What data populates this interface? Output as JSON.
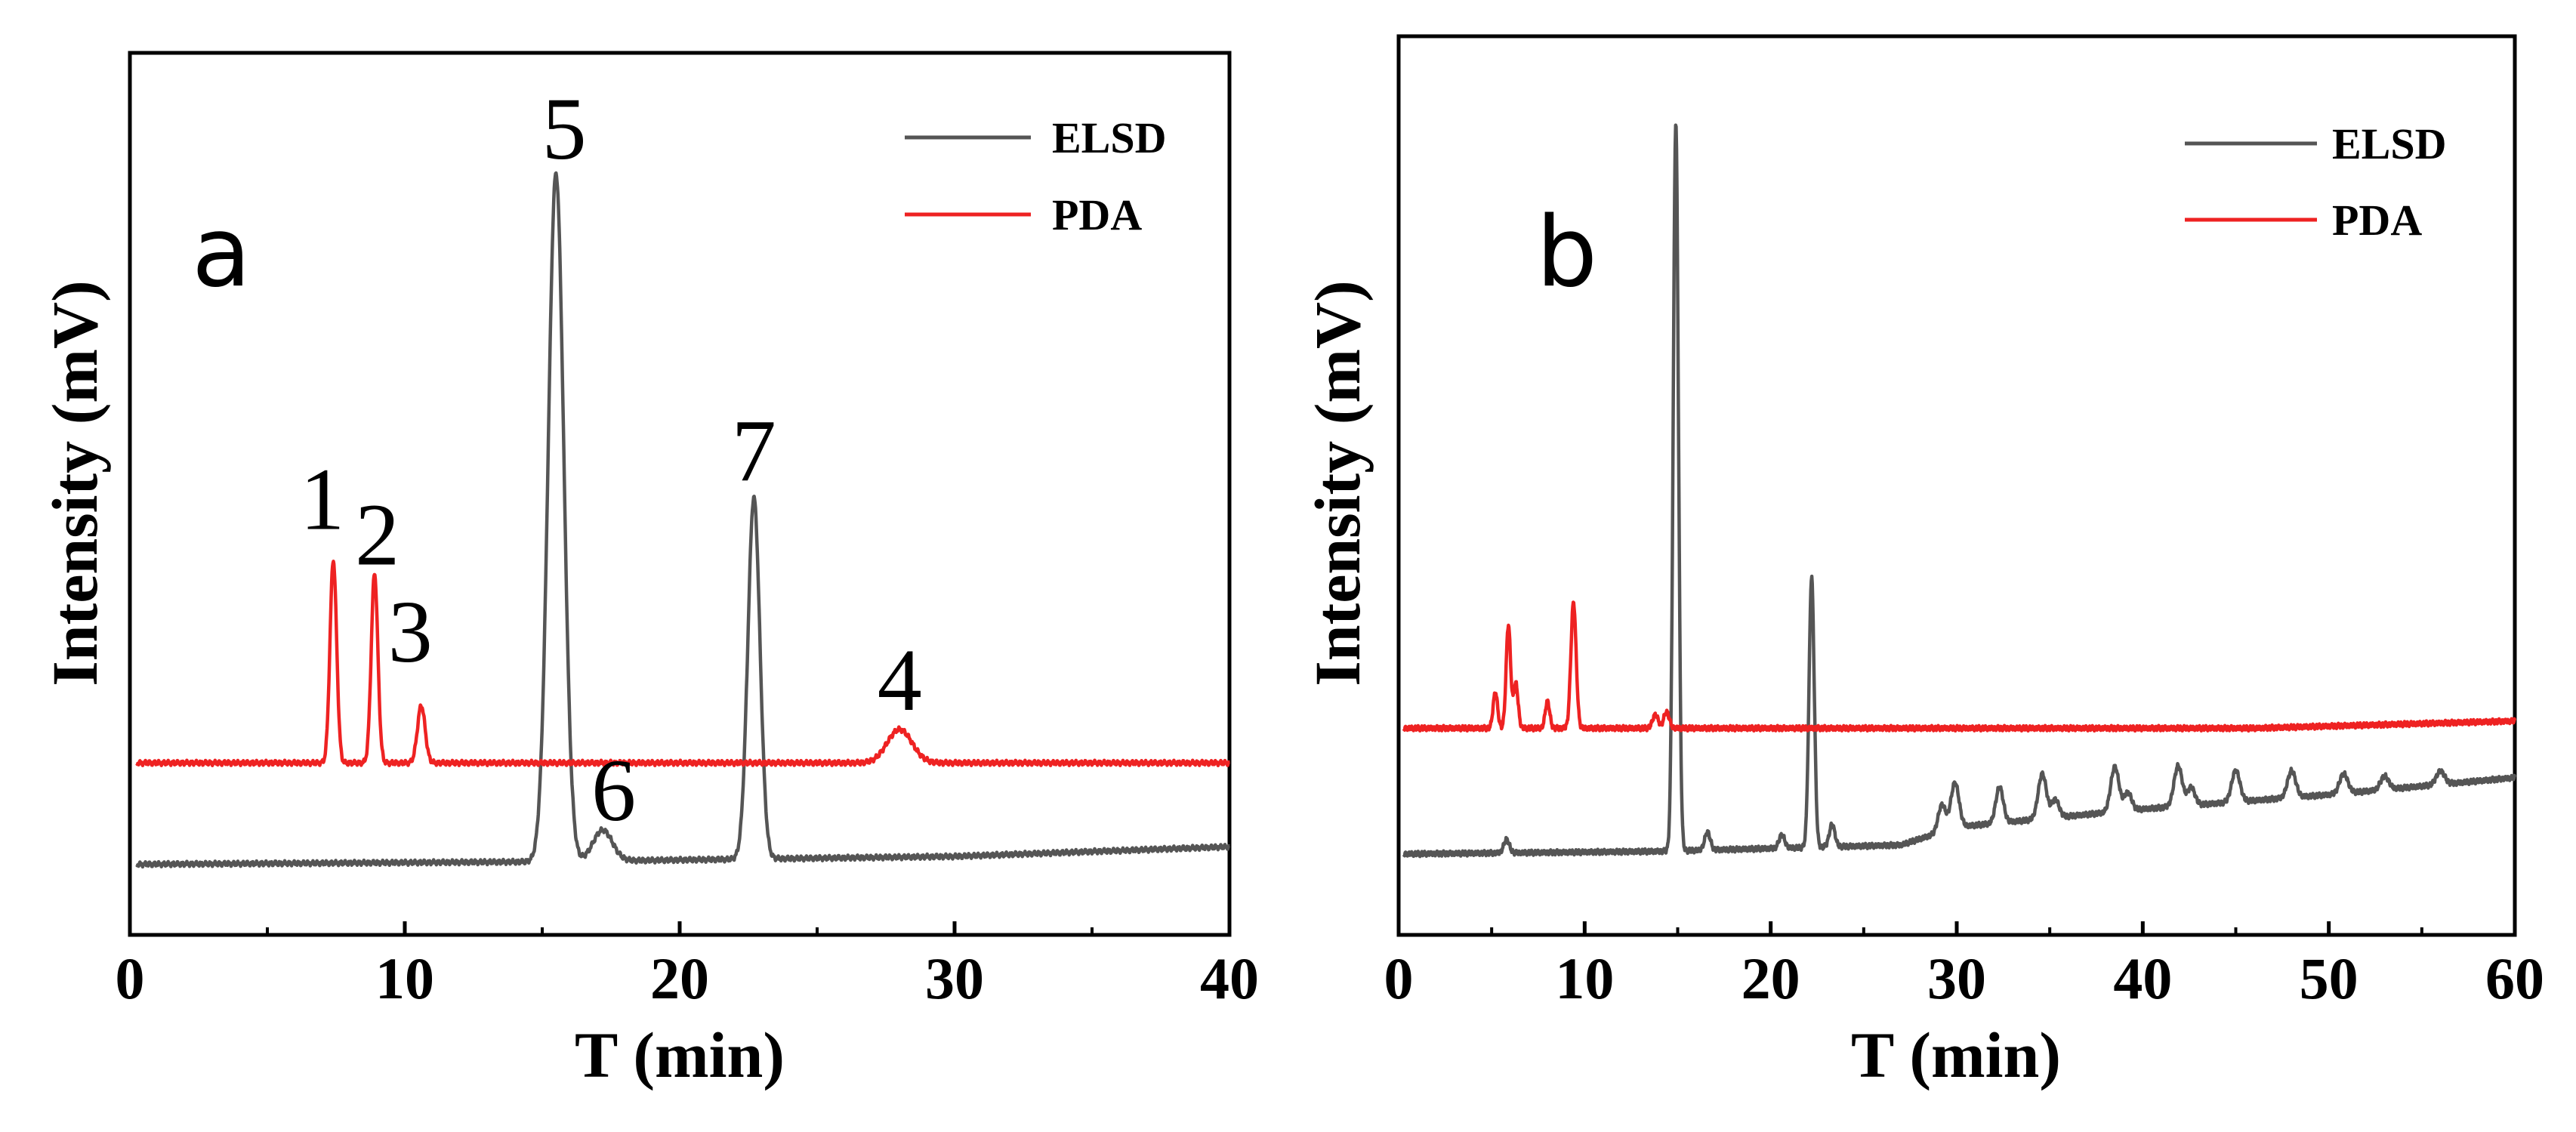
{
  "colors": {
    "elsd": "#555555",
    "pda": "#ee2222",
    "axis": "#000000"
  },
  "chart_data": [
    {
      "type": "line",
      "panel_label": "a",
      "xlabel": "T (min)",
      "ylabel": "Intensity (mV)",
      "xlim": [
        0,
        40
      ],
      "ylim": [
        0,
        100
      ],
      "xticks": [
        0,
        10,
        20,
        30,
        40
      ],
      "xtick_labels": [
        "0",
        "10",
        "20",
        "30",
        "40"
      ],
      "yticks_labeled": false,
      "legend": {
        "position": "top-right",
        "entries": [
          "ELSD",
          "PDA"
        ]
      },
      "series": [
        {
          "name": "ELSD",
          "baseline": [
            [
              0,
              8.0
            ],
            [
              15.0,
              8.3
            ],
            [
              30,
              8.9
            ],
            [
              40,
              10.0
            ]
          ],
          "peaks": [
            {
              "x": 15.5,
              "height": 78,
              "width": 0.28
            },
            {
              "x": 17.2,
              "height": 3.5,
              "width": 0.35
            },
            {
              "x": 22.7,
              "height": 41,
              "width": 0.22
            }
          ]
        },
        {
          "name": "PDA",
          "baseline": [
            [
              0,
              19.5
            ],
            [
              40,
              19.5
            ]
          ],
          "peaks": [
            {
              "x": 7.4,
              "height": 23,
              "width": 0.12
            },
            {
              "x": 8.9,
              "height": 21.5,
              "width": 0.12
            },
            {
              "x": 10.6,
              "height": 6.5,
              "width": 0.14
            },
            {
              "x": 28.0,
              "height": 3.8,
              "width": 0.45
            }
          ]
        }
      ],
      "annotations": [
        {
          "text": "1",
          "x": 7.0,
          "y": 46
        },
        {
          "text": "2",
          "x": 9.0,
          "y": 42
        },
        {
          "text": "3",
          "x": 10.2,
          "y": 31
        },
        {
          "text": "4",
          "x": 28.0,
          "y": 25.5
        },
        {
          "text": "5",
          "x": 15.8,
          "y": 88
        },
        {
          "text": "6",
          "x": 17.6,
          "y": 13
        },
        {
          "text": "7",
          "x": 22.7,
          "y": 51.5
        }
      ]
    },
    {
      "type": "line",
      "panel_label": "b",
      "xlabel": "T (min)",
      "ylabel": "Intensity (mV)",
      "xlim": [
        0,
        60
      ],
      "ylim": [
        0,
        100
      ],
      "xticks": [
        0,
        10,
        20,
        30,
        40,
        50,
        60
      ],
      "xtick_labels": [
        "0",
        "10",
        "20",
        "30",
        "40",
        "50",
        "60"
      ],
      "yticks_labeled": false,
      "legend": {
        "position": "top-right",
        "entries": [
          "ELSD",
          "PDA"
        ]
      },
      "series": [
        {
          "name": "ELSD",
          "baseline": [
            [
              0,
              9.0
            ],
            [
              14.0,
              9.3
            ],
            [
              27.0,
              10.0
            ],
            [
              30.0,
              12.0
            ],
            [
              40.0,
              14.0
            ],
            [
              50.0,
              15.6
            ],
            [
              60.0,
              17.5
            ]
          ],
          "peaks": [
            {
              "x": 5.8,
              "height": 1.5,
              "width": 0.15
            },
            {
              "x": 14.9,
              "height": 81,
              "width": 0.14
            },
            {
              "x": 16.6,
              "height": 2.0,
              "width": 0.15
            },
            {
              "x": 20.6,
              "height": 1.5,
              "width": 0.15
            },
            {
              "x": 22.2,
              "height": 30,
              "width": 0.14
            },
            {
              "x": 23.3,
              "height": 2.5,
              "width": 0.15
            },
            {
              "x": 29.2,
              "height": 3.0,
              "width": 0.2
            },
            {
              "x": 29.9,
              "height": 5.0,
              "width": 0.22
            },
            {
              "x": 32.3,
              "height": 4.0,
              "width": 0.2
            },
            {
              "x": 34.6,
              "height": 5.0,
              "width": 0.22
            },
            {
              "x": 35.3,
              "height": 2.0,
              "width": 0.2
            },
            {
              "x": 38.5,
              "height": 5.0,
              "width": 0.22
            },
            {
              "x": 39.2,
              "height": 2.0,
              "width": 0.2
            },
            {
              "x": 41.9,
              "height": 4.5,
              "width": 0.22
            },
            {
              "x": 42.6,
              "height": 2.0,
              "width": 0.2
            },
            {
              "x": 45.0,
              "height": 3.5,
              "width": 0.22
            },
            {
              "x": 48.0,
              "height": 3.0,
              "width": 0.22
            },
            {
              "x": 50.8,
              "height": 2.2,
              "width": 0.22
            },
            {
              "x": 53.0,
              "height": 1.5,
              "width": 0.22
            },
            {
              "x": 56.0,
              "height": 1.5,
              "width": 0.22
            }
          ]
        },
        {
          "name": "PDA",
          "baseline": [
            [
              0,
              23.0
            ],
            [
              46.0,
              23.0
            ],
            [
              60.0,
              23.8
            ]
          ],
          "peaks": [
            {
              "x": 5.2,
              "height": 4.0,
              "width": 0.12
            },
            {
              "x": 5.9,
              "height": 11.5,
              "width": 0.12
            },
            {
              "x": 6.3,
              "height": 5.0,
              "width": 0.12
            },
            {
              "x": 8.0,
              "height": 3.0,
              "width": 0.12
            },
            {
              "x": 9.4,
              "height": 14.0,
              "width": 0.14
            },
            {
              "x": 13.8,
              "height": 1.5,
              "width": 0.15
            },
            {
              "x": 14.4,
              "height": 1.8,
              "width": 0.15
            }
          ]
        }
      ],
      "annotations": []
    }
  ]
}
